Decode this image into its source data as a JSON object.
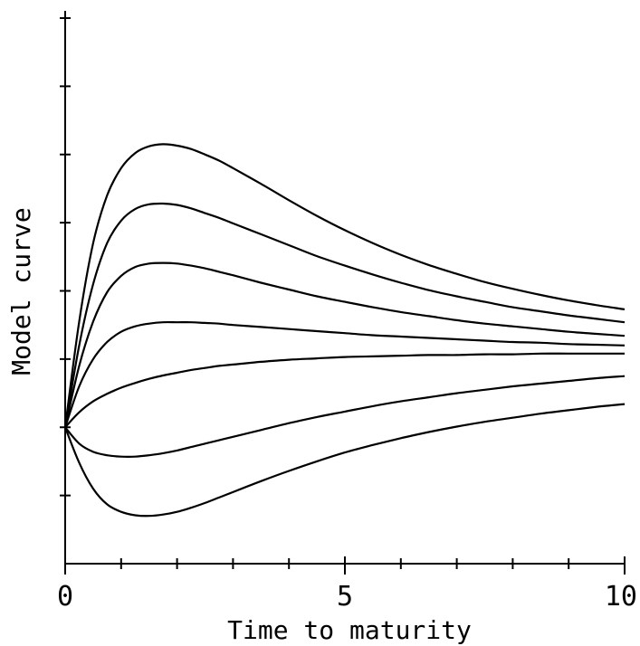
{
  "chart_data": {
    "type": "line",
    "title": "",
    "xlabel": "Time to maturity",
    "ylabel": "Model curve",
    "xlim": [
      0,
      10
    ],
    "ylim": [
      -2,
      6
    ],
    "x_tick_labels": [
      "0",
      "5",
      "10"
    ],
    "x_ticks_major": [
      0,
      5,
      10
    ],
    "x_ticks_minor": [
      1,
      2,
      3,
      4,
      6,
      7,
      8,
      9
    ],
    "y_ticks": [
      -1,
      0,
      1,
      2,
      3,
      4,
      5,
      6
    ],
    "y_tick_labels_shown": false,
    "grid": false,
    "legend": "none",
    "line_color": "#000000",
    "x": [
      0,
      0.25,
      0.5,
      0.75,
      1,
      1.25,
      1.5,
      1.75,
      2,
      2.25,
      2.5,
      2.75,
      3,
      3.5,
      4,
      4.5,
      5,
      5.5,
      6,
      6.5,
      7,
      7.5,
      8,
      8.5,
      9,
      9.5,
      10
    ],
    "series": [
      {
        "values": [
          0,
          1.55,
          2.7,
          3.4,
          3.8,
          4.02,
          4.12,
          4.15,
          4.13,
          4.08,
          4.0,
          3.91,
          3.8,
          3.57,
          3.33,
          3.1,
          2.89,
          2.7,
          2.53,
          2.38,
          2.25,
          2.13,
          2.03,
          1.94,
          1.86,
          1.79,
          1.73
        ]
      },
      {
        "values": [
          0,
          1.2,
          2.1,
          2.7,
          3.03,
          3.2,
          3.27,
          3.28,
          3.26,
          3.21,
          3.14,
          3.07,
          2.99,
          2.83,
          2.67,
          2.51,
          2.37,
          2.24,
          2.12,
          2.01,
          1.92,
          1.84,
          1.76,
          1.7,
          1.64,
          1.59,
          1.54
        ]
      },
      {
        "values": [
          0,
          0.9,
          1.55,
          1.98,
          2.22,
          2.35,
          2.4,
          2.41,
          2.4,
          2.37,
          2.33,
          2.28,
          2.23,
          2.12,
          2.02,
          1.92,
          1.84,
          1.76,
          1.69,
          1.63,
          1.57,
          1.52,
          1.48,
          1.44,
          1.4,
          1.37,
          1.34
        ]
      },
      {
        "values": [
          0,
          0.6,
          1.0,
          1.25,
          1.4,
          1.48,
          1.52,
          1.54,
          1.54,
          1.54,
          1.53,
          1.52,
          1.5,
          1.47,
          1.44,
          1.41,
          1.38,
          1.35,
          1.33,
          1.31,
          1.29,
          1.27,
          1.25,
          1.24,
          1.22,
          1.21,
          1.2
        ]
      },
      {
        "values": [
          0,
          0.22,
          0.38,
          0.49,
          0.58,
          0.65,
          0.71,
          0.76,
          0.8,
          0.84,
          0.87,
          0.9,
          0.92,
          0.96,
          0.99,
          1.01,
          1.03,
          1.04,
          1.05,
          1.06,
          1.06,
          1.07,
          1.07,
          1.08,
          1.08,
          1.08,
          1.08
        ]
      },
      {
        "values": [
          0,
          -0.24,
          -0.36,
          -0.41,
          -0.43,
          -0.43,
          -0.41,
          -0.38,
          -0.34,
          -0.29,
          -0.24,
          -0.19,
          -0.14,
          -0.04,
          0.06,
          0.15,
          0.23,
          0.31,
          0.38,
          0.44,
          0.5,
          0.55,
          0.6,
          0.64,
          0.68,
          0.72,
          0.75
        ]
      },
      {
        "values": [
          0,
          -0.52,
          -0.9,
          -1.13,
          -1.24,
          -1.29,
          -1.3,
          -1.28,
          -1.24,
          -1.18,
          -1.11,
          -1.03,
          -0.95,
          -0.79,
          -0.64,
          -0.5,
          -0.37,
          -0.26,
          -0.16,
          -0.07,
          0.01,
          0.08,
          0.14,
          0.2,
          0.25,
          0.3,
          0.34
        ]
      }
    ]
  }
}
